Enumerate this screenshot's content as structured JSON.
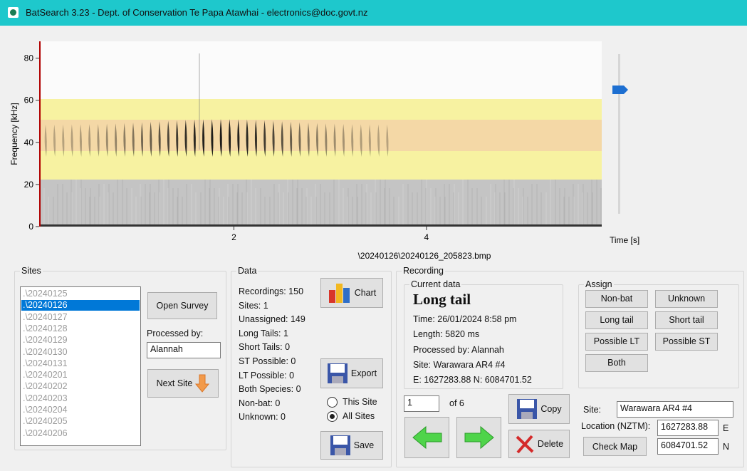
{
  "window": {
    "title": "BatSearch 3.23 - Dept. of Conservation Te Papa Atawhai - electronics@doc.govt.nz"
  },
  "spectrogram": {
    "y_axis_label": "Frequency [kHz]",
    "ylim": [
      0,
      88
    ],
    "yticks": [
      0,
      20,
      40,
      60,
      80
    ],
    "xlim": [
      0,
      5.82
    ],
    "xticks": [
      2,
      4
    ],
    "x_axis_label": "Time [s]",
    "file": "\\20240126\\20240126_205823.bmp"
  },
  "sites": {
    "label": "Sites",
    "items": [
      ".\\20240125",
      ".\\20240126",
      ".\\20240127",
      ".\\20240128",
      ".\\20240129",
      ".\\20240130",
      ".\\20240131",
      ".\\20240201",
      ".\\20240202",
      ".\\20240203",
      ".\\20240204",
      ".\\20240205",
      ".\\20240206"
    ],
    "selected": 1,
    "open_survey": "Open Survey",
    "processed_by_label": "Processed by:",
    "processed_by": "Alannah",
    "next_site": "Next Site"
  },
  "data": {
    "label": "Data",
    "stats": [
      "Recordings: 150",
      "Sites: 1",
      "Unassigned: 149",
      "Long Tails: 1",
      "Short Tails: 0",
      "ST Possible: 0",
      "LT Possible: 0",
      "Both Species: 0",
      "Non-bat: 0",
      "Unknown: 0"
    ],
    "chart": "Chart",
    "export": "Export",
    "scope_options": [
      "This Site",
      "All Sites"
    ],
    "scope_selected": 1,
    "save": "Save"
  },
  "recording": {
    "label": "Recording",
    "current_label": "Current data",
    "species": "Long tail",
    "details": [
      "Time: 26/01/2024  8:58 pm",
      "Length: 5820 ms",
      "Processed by: Alannah",
      "Site: Warawara AR4 #4",
      "E: 1627283.88   N: 6084701.52"
    ],
    "index": "1",
    "of_total": "of 6",
    "copy": "Copy",
    "delete": "Delete",
    "assign": {
      "label": "Assign",
      "buttons": [
        "Non-bat",
        "Unknown",
        "Long tail",
        "Short tail",
        "Possible LT",
        "Possible ST",
        "Both"
      ]
    },
    "site_label": "Site:",
    "site": "Warawara AR4 #4",
    "location_label": "Location (NZTM):",
    "easting": "1627283.88",
    "easting_unit": "E",
    "northing": "6084701.52",
    "northing_unit": "N",
    "check_map": "Check Map"
  }
}
